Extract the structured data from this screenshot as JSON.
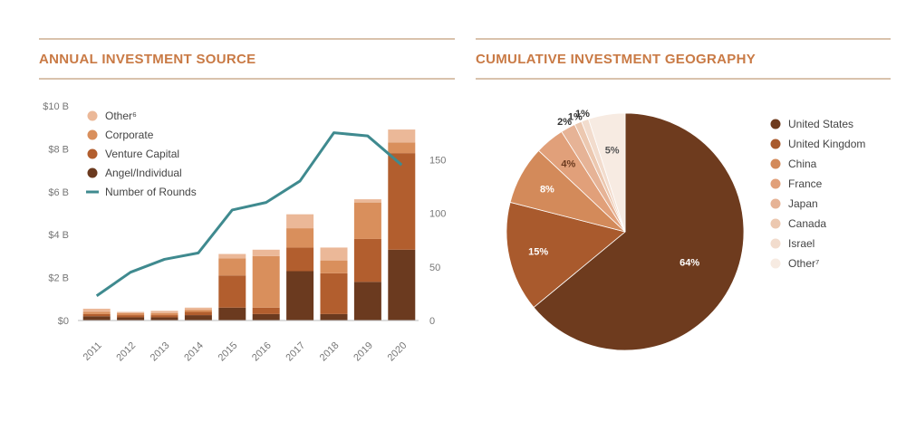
{
  "colors": {
    "title": "#c97a45",
    "rule": "#d9c2ac",
    "line": "#3f8a8f",
    "axis_text": "#777777"
  },
  "chart_data": [
    {
      "type": "bar",
      "title": "ANNUAL INVESTMENT SOURCE",
      "stacked": true,
      "categories": [
        "2011",
        "2012",
        "2013",
        "2014",
        "2015",
        "2016",
        "2017",
        "2018",
        "2019",
        "2020"
      ],
      "y_ticks": [
        "$0",
        "$2 B",
        "$4 B",
        "$6 B",
        "$8 B",
        "$10 B"
      ],
      "ylim": [
        0,
        10
      ],
      "y2_ticks": [
        "0",
        "50",
        "100",
        "150"
      ],
      "y2lim": [
        0,
        200
      ],
      "series": [
        {
          "name": "Angel/Individual",
          "color": "#6b3a1f",
          "values": [
            0.2,
            0.15,
            0.15,
            0.25,
            0.6,
            0.3,
            2.3,
            0.3,
            1.8,
            3.3
          ]
        },
        {
          "name": "Venture Capital",
          "color": "#b25e2e",
          "values": [
            0.1,
            0.1,
            0.1,
            0.15,
            1.5,
            0.3,
            1.1,
            1.9,
            2.0,
            4.5
          ]
        },
        {
          "name": "Corporate",
          "color": "#d98f5c",
          "values": [
            0.1,
            0.1,
            0.1,
            0.1,
            0.8,
            2.4,
            0.9,
            0.6,
            1.7,
            0.5
          ]
        },
        {
          "name": "Other⁶",
          "color": "#ebb898",
          "values": [
            0.15,
            0.05,
            0.1,
            0.1,
            0.2,
            0.3,
            0.65,
            0.6,
            0.15,
            0.6
          ]
        }
      ],
      "line_series": {
        "name": "Number of Rounds",
        "color": "#3f8a8f",
        "values": [
          23,
          45,
          57,
          63,
          103,
          110,
          130,
          175,
          172,
          145
        ]
      },
      "legend": [
        "Other⁶",
        "Corporate",
        "Venture Capital",
        "Angel/Individual",
        "Number of Rounds"
      ]
    },
    {
      "type": "pie",
      "title": "CUMULATIVE INVESTMENT GEOGRAPHY",
      "slices": [
        {
          "label": "United States",
          "value": 64,
          "color": "#6e3b1e",
          "text": "64%"
        },
        {
          "label": "United Kingdom",
          "value": 15,
          "color": "#a95a2d",
          "text": "15%"
        },
        {
          "label": "China",
          "value": 8,
          "color": "#d38a5a",
          "text": "8%"
        },
        {
          "label": "France",
          "value": 4,
          "color": "#e1a07a",
          "text": "4%"
        },
        {
          "label": "Japan",
          "value": 2,
          "color": "#e6b396",
          "text": "2%"
        },
        {
          "label": "Canada",
          "value": 1,
          "color": "#ecc8b0",
          "text": "1%"
        },
        {
          "label": "Israel",
          "value": 1,
          "color": "#f2dccd",
          "text": "1%"
        },
        {
          "label": "Other⁷",
          "value": 5,
          "color": "#f7ebe2",
          "text": "5%"
        }
      ],
      "legend": [
        "United States",
        "United Kingdom",
        "China",
        "France",
        "Japan",
        "Canada",
        "Israel",
        "Other⁷"
      ]
    }
  ]
}
